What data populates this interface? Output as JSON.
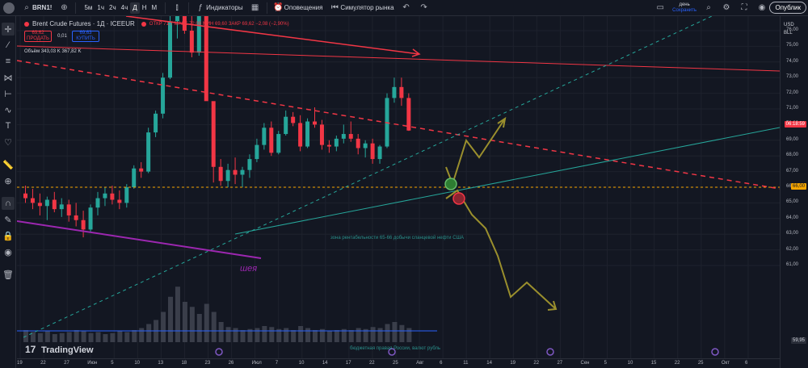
{
  "toolbar": {
    "symbol": "BRN1!",
    "timeframes": [
      "5м",
      "1ч",
      "2ч",
      "4ч",
      "Д",
      "Н",
      "М"
    ],
    "active_timeframe": "Д",
    "indicators": "Индикаторы",
    "alerts": "Оповещения",
    "replay": "Симулятор рынка",
    "day_label": "день",
    "save_label": "Сохранить",
    "publish": "Опублик"
  },
  "legend": {
    "title": "Brent Crude Futures · 1Д · ICEEUR",
    "ohlc": "ОТКР 71,7  МАКС 72,00  МИН 69,60  ЗАКР 69,62  −2,08 (−2,90%)",
    "sell_price": "69,62",
    "sell_label": "ПРОДАТЬ",
    "spread": "0,01",
    "buy_price": "69,63",
    "buy_label": "КУПИТЬ",
    "volume": "Объём  343,03 K  367,82 K"
  },
  "annotations": {
    "neck": "шея",
    "zone": "зона рентабельности 65-66 добычи сланцевой нефти США",
    "budget": "бюджетная правая России, валют рубль"
  },
  "axis": {
    "currency": "USD",
    "unit": "BLL",
    "ticks": [
      "76,00",
      "75,00",
      "74,00",
      "73,00",
      "72,00",
      "71,00",
      "70,00",
      "69,00",
      "68,00",
      "67,00",
      "66,00",
      "65,00",
      "64,00",
      "63,00",
      "62,00",
      "61,00"
    ],
    "countdown": "06:18:59",
    "level_66": "66,00",
    "level_bottom": "59,95",
    "dates": [
      "19",
      "22",
      "27",
      "Июн",
      "5",
      "10",
      "13",
      "18",
      "23",
      "26",
      "Июл",
      "7",
      "10",
      "14",
      "17",
      "22",
      "25",
      "Авг",
      "6",
      "11",
      "14",
      "19",
      "22",
      "27",
      "Сен",
      "5",
      "10",
      "15",
      "22",
      "25",
      "Окт",
      "6"
    ]
  },
  "brand": "TradingView",
  "colors": {
    "up": "#26a69a",
    "down": "#f23645",
    "bg": "#131722"
  }
}
